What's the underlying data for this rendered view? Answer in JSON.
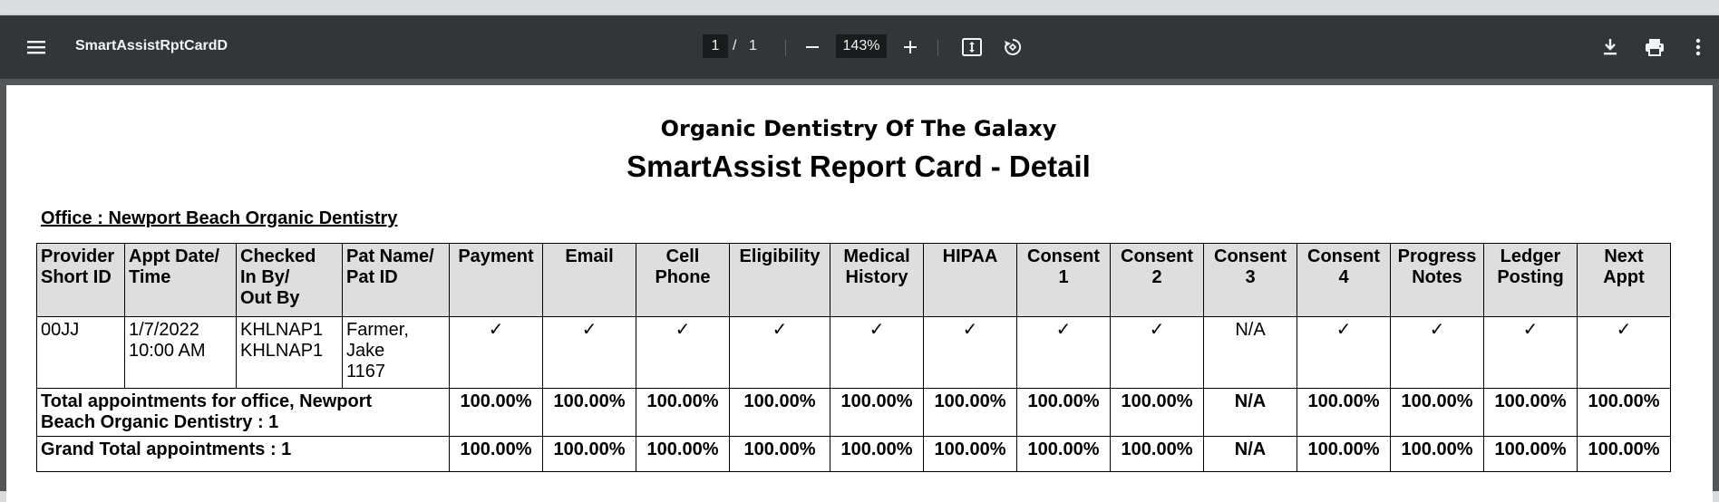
{
  "toolbar": {
    "title": "SmartAssistRptCardD",
    "page_current": "1",
    "page_separator": "/",
    "page_total": "1",
    "zoom": "143%",
    "icons": [
      "menu-icon",
      "zoom-out-icon",
      "zoom-in-icon",
      "fit-page-icon",
      "rotate-icon",
      "download-icon",
      "print-icon",
      "more-vert-icon"
    ]
  },
  "report": {
    "org_name": "Organic Dentistry Of The Galaxy",
    "title": "SmartAssist Report Card - Detail",
    "office_line": "Office : Newport Beach Organic Dentistry",
    "headers": {
      "provider": [
        "Provider",
        "Short ID"
      ],
      "appt": [
        "Appt Date/",
        "Time"
      ],
      "checked": [
        "Checked",
        "In By/",
        "Out By"
      ],
      "patient": [
        "Pat Name/",
        "Pat ID"
      ],
      "payment": [
        "Payment"
      ],
      "email": [
        "Email"
      ],
      "cell": [
        "Cell",
        "Phone"
      ],
      "eligibility": [
        "Eligibility"
      ],
      "medical": [
        "Medical",
        "History"
      ],
      "hipaa": [
        "HIPAA"
      ],
      "consent1": [
        "Consent",
        "1"
      ],
      "consent2": [
        "Consent",
        "2"
      ],
      "consent3": [
        "Consent",
        "3"
      ],
      "consent4": [
        "Consent",
        "4"
      ],
      "progress": [
        "Progress",
        "Notes"
      ],
      "ledger": [
        "Ledger",
        "Posting"
      ],
      "next": [
        "Next",
        "Appt"
      ]
    },
    "row": {
      "provider": "00JJ",
      "appt_date": "1/7/2022",
      "appt_time": "10:00 AM",
      "checked_in": "KHLNAP1",
      "checked_out": "KHLNAP1",
      "pat_name_1": "Farmer,",
      "pat_name_2": "Jake",
      "pat_id": "1167",
      "payment": "✓",
      "email": "✓",
      "cell": "✓",
      "eligibility": "✓",
      "medical": "✓",
      "hipaa": "✓",
      "consent1": "✓",
      "consent2": "✓",
      "consent3": "N/A",
      "consent4": "✓",
      "progress": "✓",
      "ledger": "✓",
      "next": "✓"
    },
    "office_total": {
      "label_1": "Total appointments for office, Newport",
      "label_2": "Beach Organic Dentistry : 1",
      "values": [
        "100.00%",
        "100.00%",
        "100.00%",
        "100.00%",
        "100.00%",
        "100.00%",
        "100.00%",
        "100.00%",
        "N/A",
        "100.00%",
        "100.00%",
        "100.00%",
        "100.00%"
      ]
    },
    "grand_total": {
      "label": "Grand Total appointments : 1",
      "values": [
        "100.00%",
        "100.00%",
        "100.00%",
        "100.00%",
        "100.00%",
        "100.00%",
        "100.00%",
        "100.00%",
        "N/A",
        "100.00%",
        "100.00%",
        "100.00%",
        "100.00%"
      ]
    }
  }
}
